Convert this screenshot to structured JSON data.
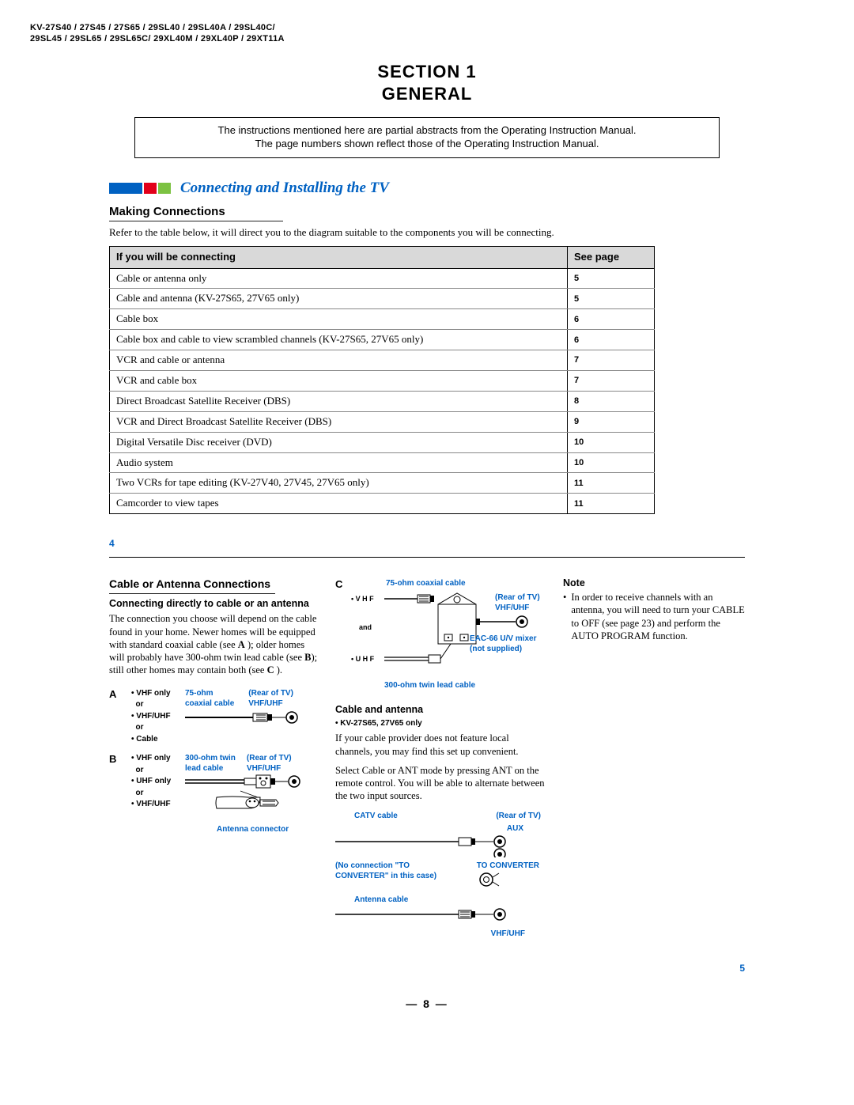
{
  "header": {
    "models_line1": "KV-27S40 / 27S45 / 27S65 / 29SL40 / 29SL40A / 29SL40C/",
    "models_line2": "29SL45 / 29SL65 / 29SL65C/ 29XL40M / 29XL40P / 29XT11A"
  },
  "section": {
    "title": "SECTION 1\nGENERAL",
    "intro_line1": "The instructions mentioned here are partial abstracts from the Operating Instruction Manual.",
    "intro_line2": "The page numbers shown reflect those of the Operating Instruction Manual."
  },
  "banner": {
    "title": "Connecting and Installing the TV",
    "block_colors": [
      "#0061c2",
      "#e2001a",
      "#7cc242"
    ]
  },
  "making_connections": {
    "heading": "Making Connections",
    "intro": "Refer to the table below, it will direct you to the diagram suitable to the components you will be connecting.",
    "columns": [
      "If you will be connecting",
      "See page"
    ],
    "rows": [
      {
        "label": "Cable or antenna only",
        "page": "5"
      },
      {
        "label": "Cable and antenna (KV-27S65, 27V65 only)",
        "page": "5"
      },
      {
        "label": "Cable box",
        "page": "6"
      },
      {
        "label": "Cable box and cable to view scrambled channels (KV-27S65, 27V65 only)",
        "page": "6"
      },
      {
        "label": "VCR and cable or antenna",
        "page": "7"
      },
      {
        "label": "VCR and cable box",
        "page": "7"
      },
      {
        "label": "Direct Broadcast Satellite Receiver (DBS)",
        "page": "8"
      },
      {
        "label": "VCR and Direct Broadcast Satellite Receiver (DBS)",
        "page": "9"
      },
      {
        "label": "Digital Versatile Disc receiver (DVD)",
        "page": "10"
      },
      {
        "label": "Audio system",
        "page": "10"
      },
      {
        "label": "Two VCRs for tape editing (KV-27V40, 27V45, 27V65 only)",
        "page": "11"
      },
      {
        "label": "Camcorder to view tapes",
        "page": "11"
      }
    ],
    "page_number": "4"
  },
  "cable_antenna": {
    "heading": "Cable or Antenna Connections",
    "sub_heading": "Connecting directly to cable or an antenna",
    "paragraph": "The connection you choose will depend on the cable found in your home. Newer homes will be equipped with standard coaxial cable (see A ); older homes will probably have 300-ohm twin lead cable (see B); still other homes may contain both (see C ).",
    "A": {
      "letter": "A",
      "list": [
        "VHF only",
        "or",
        "VHF/UHF",
        "or",
        "Cable"
      ],
      "label_top": "75-ohm",
      "label_top2": "coaxial cable",
      "label_rear": "(Rear of TV)",
      "label_vhfuhf": "VHF/UHF"
    },
    "B": {
      "letter": "B",
      "list": [
        "VHF only",
        "or",
        "UHF only",
        "or",
        "VHF/UHF"
      ],
      "label_top": "300-ohm twin",
      "label_top2": "lead cable",
      "label_rear": "(Rear of TV)",
      "label_vhfuhf": "VHF/UHF",
      "label_conn": "Antenna connector"
    },
    "C": {
      "letter": "C",
      "vhf": "VHF",
      "and": "and",
      "uhf": "UHF",
      "label_75": "75-ohm coaxial cable",
      "label_rear": "(Rear of TV)",
      "label_vhfuhf": "VHF/UHF",
      "label_mixer1": "EAC-66 U/V mixer",
      "label_mixer2": "(not supplied)",
      "label_300": "300-ohm twin lead cable"
    },
    "cable_and_antenna": {
      "heading": "Cable and antenna",
      "models": "KV-27S65, 27V65 only",
      "p1": "If your cable provider does not feature local channels, you may find this set up convenient.",
      "p2": "Select Cable or ANT mode by pressing ANT on the remote control. You will be able to alternate between the two input sources.",
      "label_catv": "CATV cable",
      "label_rear": "(Rear of TV)",
      "label_aux": "AUX",
      "label_noconv1": "(No connection \"TO",
      "label_noconv2": "CONVERTER\" in this case)",
      "label_toconv": "TO CONVERTER",
      "label_antcable": "Antenna cable",
      "label_vhfuhf": "VHF/UHF"
    },
    "note": {
      "heading": "Note",
      "bullet": "In order to receive channels with an antenna, you will need to turn your CABLE to OFF (see page 23) and perform the AUTO PROGRAM function."
    },
    "page_number": "5"
  },
  "footer_page": "— 8 —",
  "colors": {
    "blue": "#0061c2",
    "red": "#e2001a",
    "green": "#7cc242",
    "header_gray": "#d9d9d9"
  }
}
